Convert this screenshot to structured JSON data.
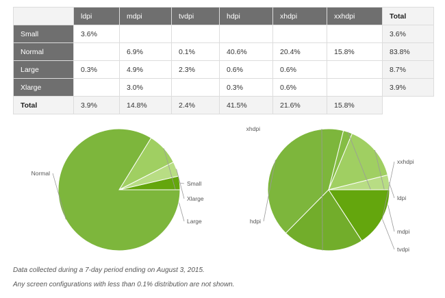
{
  "table": {
    "corner": "",
    "columns": [
      "ldpi",
      "mdpi",
      "tvdpi",
      "hdpi",
      "xhdpi",
      "xxhdpi"
    ],
    "total_label": "Total",
    "rows": [
      {
        "label": "Small",
        "cells": [
          "3.6%",
          "",
          "",
          "",
          "",
          ""
        ],
        "total": "3.6%"
      },
      {
        "label": "Normal",
        "cells": [
          "",
          "6.9%",
          "0.1%",
          "40.6%",
          "20.4%",
          "15.8%"
        ],
        "total": "83.8%"
      },
      {
        "label": "Large",
        "cells": [
          "0.3%",
          "4.9%",
          "2.3%",
          "0.6%",
          "0.6%",
          ""
        ],
        "total": "8.7%"
      },
      {
        "label": "Xlarge",
        "cells": [
          "",
          "3.0%",
          "",
          "0.3%",
          "0.6%",
          ""
        ],
        "total": "3.9%"
      }
    ],
    "footer": {
      "label": "Total",
      "cells": [
        "3.9%",
        "14.8%",
        "2.4%",
        "41.5%",
        "21.6%",
        "15.8%"
      ]
    }
  },
  "chart_data": [
    {
      "type": "pie",
      "title": "",
      "slices": [
        {
          "label": "Small",
          "value": 3.6,
          "color": "#64a60d"
        },
        {
          "label": "Xlarge",
          "value": 3.9,
          "color": "#b8dd84"
        },
        {
          "label": "Large",
          "value": 8.7,
          "color": "#a0cf62"
        },
        {
          "label": "Normal",
          "value": 83.8,
          "color": "#7db63c"
        }
      ]
    },
    {
      "type": "pie",
      "title": "",
      "slices": [
        {
          "label": "ldpi",
          "value": 3.9,
          "color": "#b8dd84"
        },
        {
          "label": "mdpi",
          "value": 14.8,
          "color": "#a0cf62"
        },
        {
          "label": "tvdpi",
          "value": 2.4,
          "color": "#85bd45"
        },
        {
          "label": "hdpi",
          "value": 41.5,
          "color": "#7db63c"
        },
        {
          "label": "xhdpi",
          "value": 21.6,
          "color": "#72ad2b"
        },
        {
          "label": "xxhdpi",
          "value": 15.8,
          "color": "#64a60d"
        }
      ]
    }
  ],
  "notes": [
    "Data collected during a 7-day period ending on August 3, 2015.",
    "Any screen configurations with less than 0.1% distribution are not shown."
  ]
}
